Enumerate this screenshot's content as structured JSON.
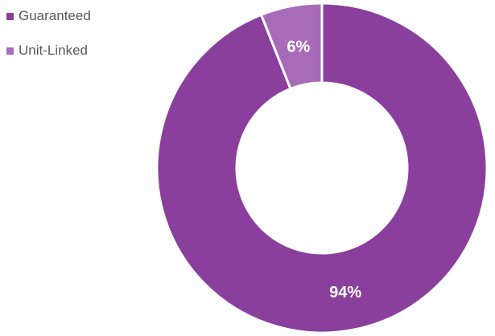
{
  "chart_data": {
    "type": "pie",
    "donut": true,
    "categories": [
      "Guaranteed",
      "Unit-Linked"
    ],
    "values": [
      94,
      6
    ],
    "data_labels": [
      "94%",
      "6%"
    ],
    "colors": [
      "#8B3F9C",
      "#A86BB8"
    ],
    "legend_position": "top-left",
    "title": ""
  }
}
